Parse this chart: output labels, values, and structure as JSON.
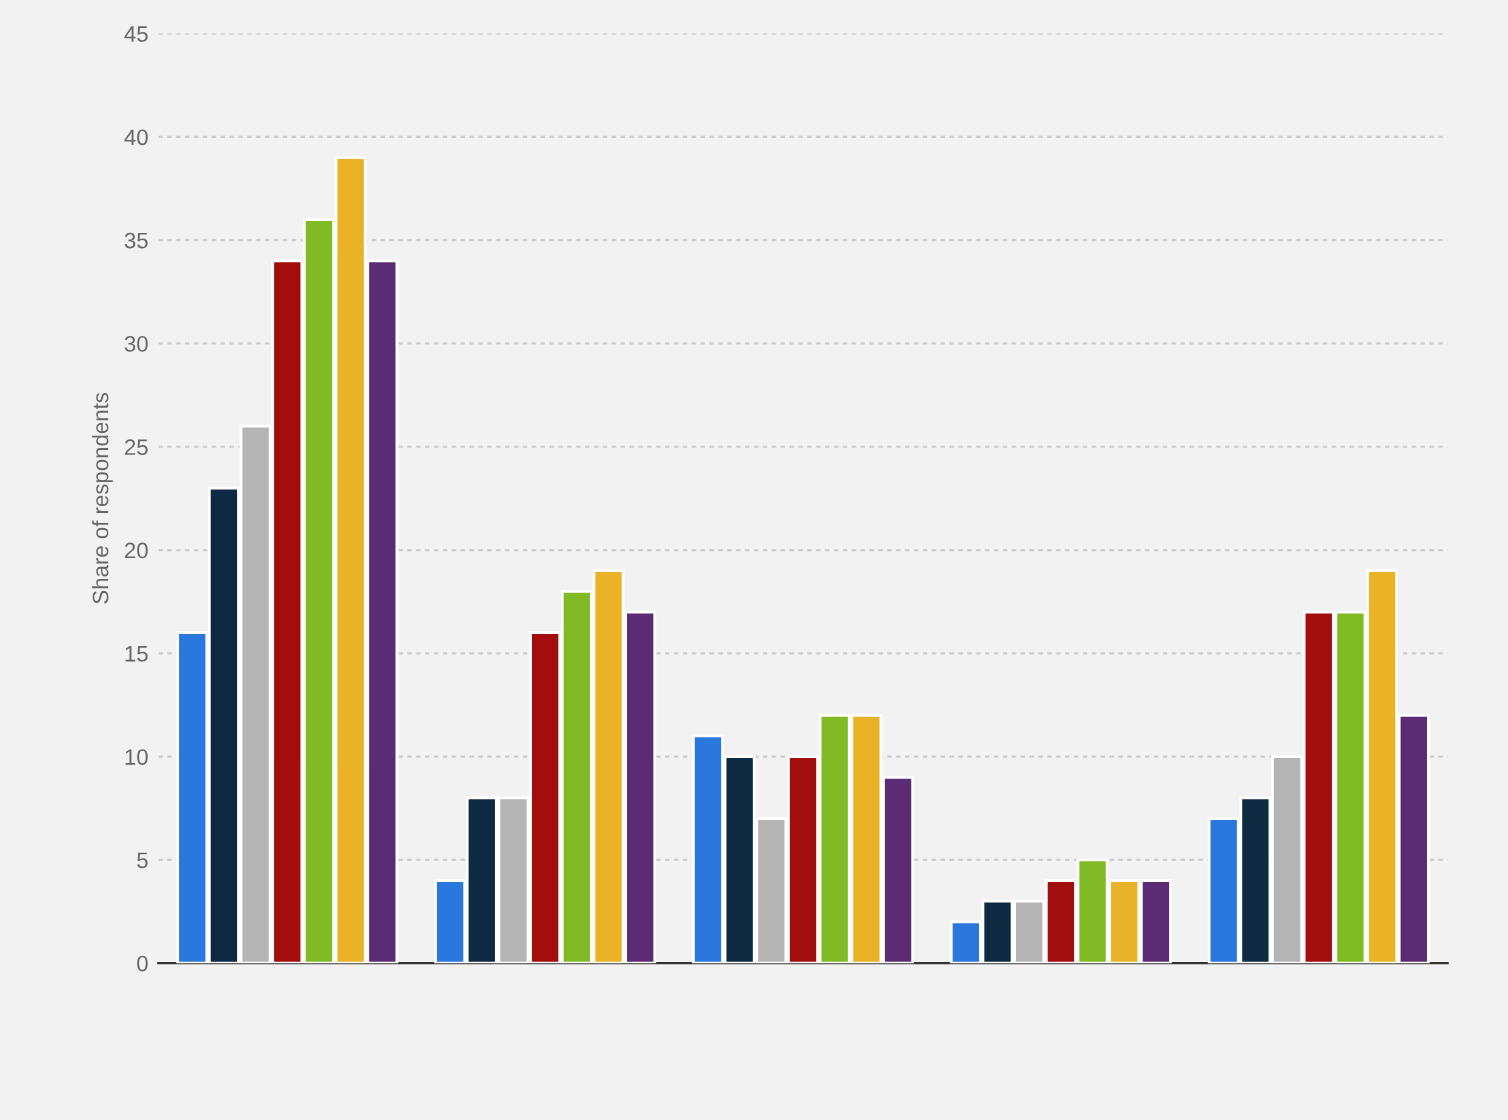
{
  "chart_data": {
    "type": "bar",
    "ylabel": "Share of respondents",
    "categories": [
      null,
      null,
      null,
      null,
      null
    ],
    "series": [
      {
        "color": "#2a78dd",
        "values": [
          16,
          4,
          11,
          2,
          7
        ]
      },
      {
        "color": "#0e2a42",
        "values": [
          23,
          8,
          10,
          3,
          8
        ]
      },
      {
        "color": "#b4b4b4",
        "values": [
          26,
          8,
          7,
          3,
          10
        ]
      },
      {
        "color": "#a20d0d",
        "values": [
          34,
          16,
          10,
          4,
          17
        ]
      },
      {
        "color": "#80bb26",
        "values": [
          36,
          18,
          12,
          5,
          17
        ]
      },
      {
        "color": "#e9b227",
        "values": [
          39,
          19,
          12,
          4,
          19
        ]
      },
      {
        "color": "#5b2c73",
        "values": [
          34,
          17,
          9,
          4,
          12
        ]
      }
    ],
    "ylim": [
      0,
      45
    ],
    "yticks": [
      0,
      5,
      10,
      15,
      20,
      25,
      30,
      35,
      40,
      45
    ],
    "grid": "y",
    "legend": false
  }
}
